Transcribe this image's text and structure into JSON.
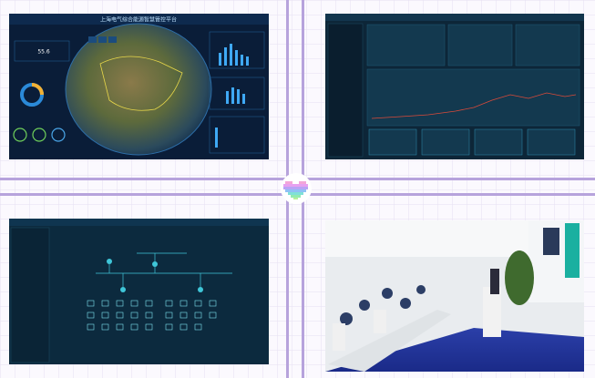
{
  "panels": [
    {
      "title": "上海电气综合能源智慧管控平台",
      "metric": "55.6"
    }
  ]
}
